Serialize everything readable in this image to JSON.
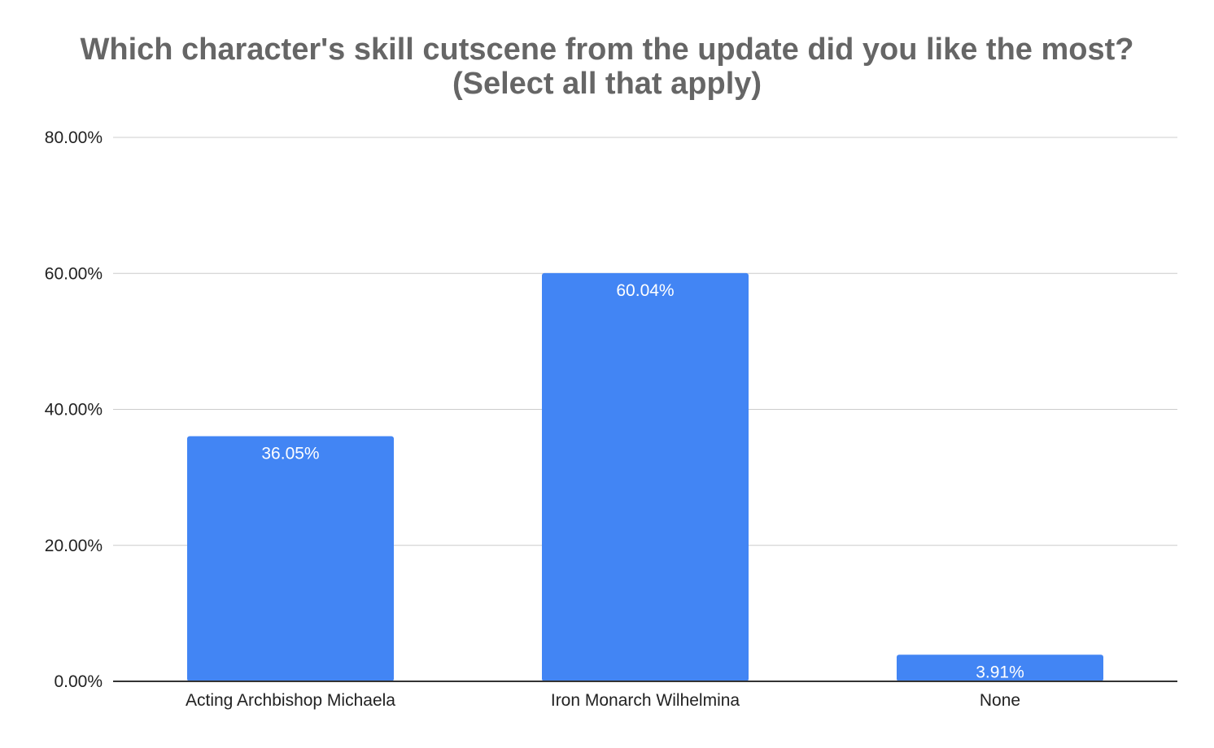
{
  "chart_data": {
    "type": "bar",
    "title": [
      "Which character's skill cutscene from the update did you like the most?",
      "(Select all that apply)"
    ],
    "categories": [
      "Acting Archbishop Michaela",
      "Iron Monarch Wilhelmina",
      "None"
    ],
    "values": [
      36.05,
      60.04,
      3.91
    ],
    "data_labels": [
      "36.05%",
      "60.04%",
      "3.91%"
    ],
    "y_ticks": [
      "0.00%",
      "20.00%",
      "40.00%",
      "60.00%",
      "80.00%"
    ],
    "y_tick_values": [
      0,
      20,
      40,
      60,
      80
    ],
    "ylim": [
      0,
      80
    ],
    "xlabel": "",
    "ylabel": "",
    "grid": true,
    "legend": "none",
    "bar_color": "#4285f4",
    "grid_color": "#cccccc",
    "axis_color": "#333333",
    "title_color": "#666666"
  }
}
